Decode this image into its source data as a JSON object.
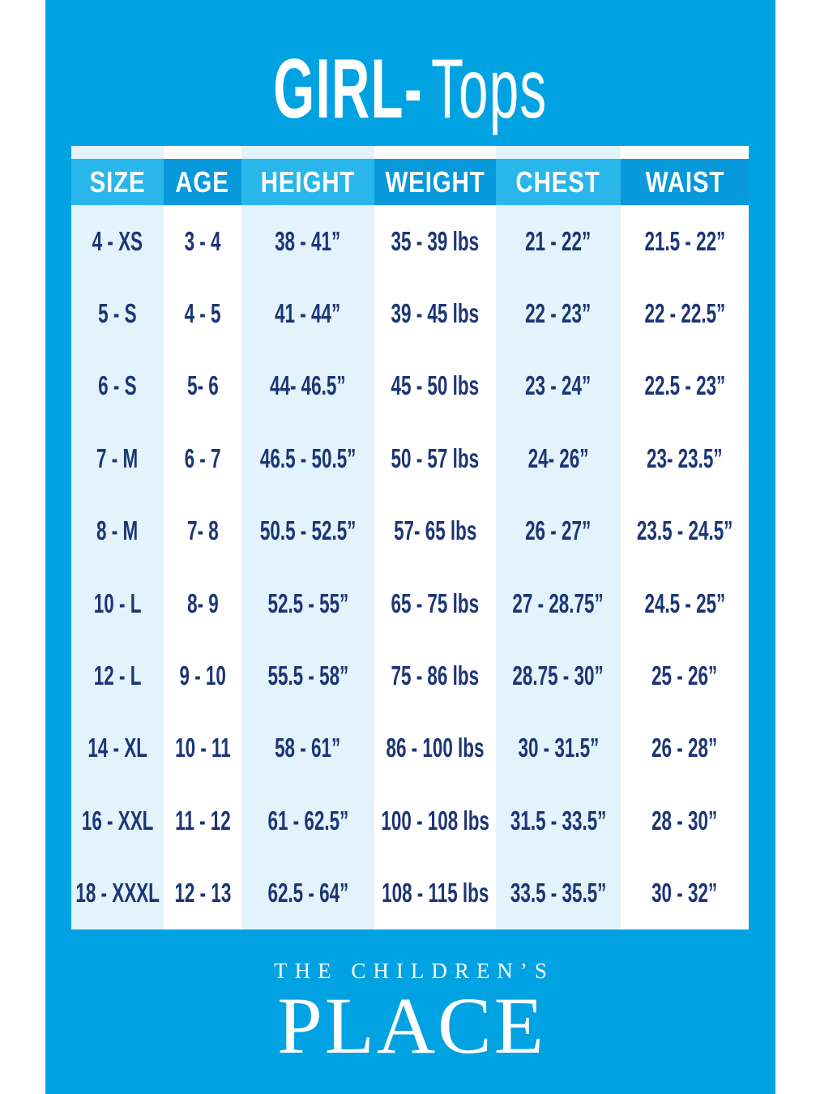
{
  "title": {
    "brand": "GIRL-",
    "category": "Tops"
  },
  "table": {
    "headers": [
      "SIZE",
      "AGE",
      "HEIGHT",
      "WEIGHT",
      "CHEST",
      "WAIST"
    ],
    "rows": [
      [
        "4 - XS",
        "3 - 4",
        "38 - 41”",
        "35 - 39 lbs",
        "21 - 22”",
        "21.5 - 22”"
      ],
      [
        "5 - S",
        "4 - 5",
        "41 - 44”",
        "39 - 45 lbs",
        "22 - 23”",
        "22 - 22.5”"
      ],
      [
        "6 - S",
        "5- 6",
        "44- 46.5”",
        "45 - 50 lbs",
        "23 - 24”",
        "22.5 - 23”"
      ],
      [
        "7 - M",
        "6 - 7",
        "46.5 - 50.5”",
        "50 - 57 lbs",
        "24- 26”",
        "23- 23.5”"
      ],
      [
        "8 - M",
        "7- 8",
        "50.5 - 52.5”",
        "57- 65 lbs",
        "26 - 27”",
        "23.5 - 24.5”"
      ],
      [
        "10 - L",
        "8- 9",
        "52.5 - 55”",
        "65 - 75 lbs",
        "27 - 28.75”",
        "24.5 - 25”"
      ],
      [
        "12 - L",
        "9 - 10",
        "55.5 - 58”",
        "75 - 86 lbs",
        "28.75 - 30”",
        "25 - 26”"
      ],
      [
        "14 - XL",
        "10 - 11",
        "58 - 61”",
        "86 - 100 lbs",
        "30 - 31.5”",
        "26 - 28”"
      ],
      [
        "16 - XXL",
        "11 - 12",
        "61 - 62.5”",
        "100 - 108 lbs",
        "31.5 - 33.5”",
        "28 - 30”"
      ],
      [
        "18 - XXXL",
        "12 - 13",
        "62.5 - 64”",
        "108 - 115 lbs",
        "33.5 - 35.5”",
        "30 - 32”"
      ]
    ]
  },
  "footer": {
    "logo_line1": "THE CHILDREN’S",
    "logo_line2": "PLACE"
  },
  "colors": {
    "card_blue": "#00a2e2",
    "header_light_cell": "#29b6ea",
    "header_deep_cell": "#0899da",
    "column_light": "#e3f3fb",
    "column_white": "#ffffff",
    "text_navy": "#1c3576",
    "text_white": "#ffffff",
    "page_margin": "#ffffff"
  }
}
